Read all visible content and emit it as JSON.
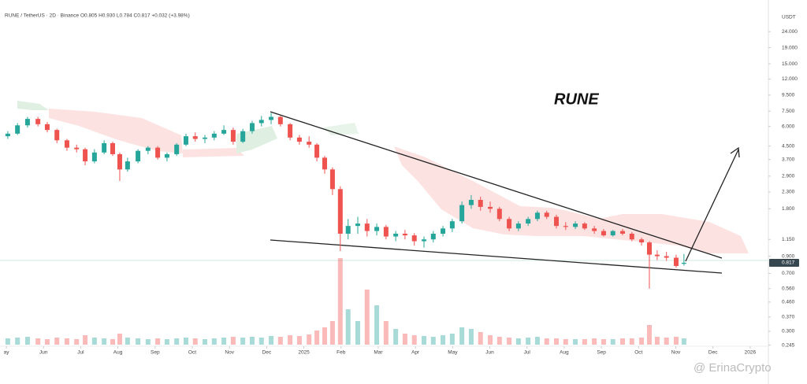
{
  "chart_data": {
    "type": "candlestick",
    "title": "RUNE / TetherUS · 2D · Binance  O0.805  H0.930  L0.784  C0.817  +0.032 (+3.98%)",
    "annotation": "RUNE",
    "watermark": "@ ErinaCrypto",
    "y_axis_label": "USDT",
    "log_scale": true,
    "grid": false,
    "up_color": "#26a69a",
    "down_color": "#ef5350",
    "tag_color": "#37474f",
    "x": [
      0.04,
      0.3,
      0.57,
      0.85,
      1.1,
      1.36,
      1.63,
      1.89,
      2.12,
      2.37,
      2.63,
      2.86,
      3.05,
      3.26,
      3.54,
      3.81,
      4.07,
      4.32,
      4.58,
      4.83,
      5.08,
      5.34,
      5.59,
      5.85,
      6.1,
      6.36,
      6.61,
      6.86,
      7.12,
      7.37,
      7.63,
      7.88,
      8.14,
      8.35,
      8.56,
      8.77,
      8.98,
      9.19,
      9.45,
      9.7,
      9.96,
      10.21,
      10.47,
      10.72,
      10.97,
      11.23,
      11.48,
      11.74,
      11.99,
      12.25,
      12.5,
      12.75,
      13.01,
      13.26,
      13.52,
      13.77,
      14.03,
      14.28,
      14.53,
      14.79,
      15.04,
      15.3,
      15.55,
      15.81,
      16.06,
      16.31,
      16.57,
      16.82,
      17.08,
      17.29,
      17.5,
      17.75,
      18.01,
      18.22
    ],
    "open": [
      5.2,
      5.4,
      6.1,
      6.7,
      6.2,
      5.7,
      4.9,
      4.4,
      4.3,
      3.6,
      4.1,
      4.7,
      4.0,
      3.2,
      3.6,
      4.2,
      4.4,
      3.8,
      4.0,
      4.6,
      5.2,
      5.0,
      5.1,
      5.4,
      5.7,
      4.8,
      5.6,
      6.3,
      6.6,
      6.9,
      6.2,
      5.1,
      4.8,
      4.6,
      3.8,
      3.2,
      2.4,
      1.25,
      1.4,
      1.45,
      1.3,
      1.38,
      1.2,
      1.25,
      1.22,
      1.12,
      1.15,
      1.25,
      1.35,
      1.5,
      1.9,
      2.05,
      1.85,
      1.8,
      1.55,
      1.35,
      1.45,
      1.55,
      1.7,
      1.6,
      1.4,
      1.38,
      1.45,
      1.35,
      1.3,
      1.22,
      1.3,
      1.25,
      1.15,
      1.1,
      0.92,
      0.9,
      0.88,
      0.805
    ],
    "high": [
      5.6,
      6.3,
      6.9,
      6.9,
      6.4,
      5.8,
      5.0,
      4.6,
      4.4,
      4.3,
      4.9,
      4.8,
      4.1,
      3.8,
      4.3,
      4.5,
      4.5,
      4.1,
      4.7,
      5.4,
      5.5,
      5.3,
      5.6,
      6.1,
      5.9,
      5.8,
      6.5,
      7.0,
      7.3,
      7.0,
      6.3,
      5.3,
      5.2,
      4.7,
      3.9,
      3.3,
      2.5,
      1.55,
      1.6,
      1.55,
      1.45,
      1.42,
      1.3,
      1.32,
      1.26,
      1.2,
      1.3,
      1.4,
      1.55,
      2.0,
      2.2,
      2.15,
      2.0,
      1.85,
      1.6,
      1.5,
      1.6,
      1.75,
      1.75,
      1.65,
      1.48,
      1.5,
      1.48,
      1.4,
      1.34,
      1.32,
      1.34,
      1.28,
      1.18,
      1.12,
      0.98,
      0.96,
      0.92,
      0.93
    ],
    "low": [
      5.0,
      5.3,
      5.9,
      6.0,
      5.5,
      4.7,
      4.2,
      4.1,
      3.4,
      3.5,
      4.0,
      3.9,
      2.7,
      3.1,
      3.5,
      4.0,
      3.7,
      3.6,
      3.9,
      4.5,
      4.8,
      4.7,
      4.9,
      5.3,
      4.6,
      4.7,
      5.4,
      6.0,
      6.2,
      6.0,
      4.9,
      4.6,
      4.4,
      3.6,
      3.0,
      2.2,
      0.97,
      1.15,
      1.25,
      1.2,
      1.22,
      1.15,
      1.12,
      1.15,
      1.05,
      1.02,
      1.1,
      1.2,
      1.28,
      1.45,
      1.8,
      1.75,
      1.7,
      1.5,
      1.3,
      1.3,
      1.4,
      1.5,
      1.55,
      1.35,
      1.32,
      1.34,
      1.32,
      1.25,
      1.2,
      1.2,
      1.22,
      1.12,
      1.05,
      0.56,
      0.85,
      0.84,
      0.76,
      0.784
    ],
    "close": [
      5.4,
      6.1,
      6.7,
      6.2,
      5.7,
      4.9,
      4.4,
      4.3,
      3.6,
      4.1,
      4.7,
      4.0,
      3.2,
      3.6,
      4.2,
      4.4,
      3.8,
      4.0,
      4.6,
      5.2,
      5.0,
      5.1,
      5.4,
      5.7,
      4.8,
      5.6,
      6.3,
      6.6,
      6.9,
      6.2,
      5.1,
      4.8,
      4.6,
      3.8,
      3.2,
      2.4,
      1.25,
      1.4,
      1.45,
      1.3,
      1.38,
      1.2,
      1.25,
      1.22,
      1.12,
      1.15,
      1.25,
      1.35,
      1.5,
      1.9,
      2.05,
      1.85,
      1.8,
      1.55,
      1.35,
      1.45,
      1.55,
      1.7,
      1.6,
      1.4,
      1.38,
      1.45,
      1.35,
      1.3,
      1.22,
      1.3,
      1.25,
      1.15,
      1.1,
      0.92,
      0.9,
      0.88,
      0.78,
      0.817
    ],
    "volume": [
      8,
      9,
      10,
      8,
      7,
      9,
      8,
      7,
      12,
      9,
      8,
      7,
      14,
      9,
      8,
      7,
      8,
      7,
      8,
      9,
      8,
      7,
      8,
      9,
      10,
      9,
      10,
      9,
      11,
      10,
      12,
      11,
      13,
      18,
      22,
      30,
      110,
      45,
      30,
      70,
      50,
      30,
      20,
      14,
      12,
      11,
      10,
      12,
      14,
      22,
      20,
      16,
      12,
      10,
      9,
      8,
      9,
      10,
      8,
      8,
      7,
      7,
      7,
      8,
      7,
      7,
      8,
      8,
      9,
      25,
      10,
      9,
      10,
      8
    ],
    "xlim": [
      -0.17,
      20.49
    ],
    "ylim": [
      0.21,
      31
    ],
    "xticks": [
      {
        "value": 0,
        "label": "ay"
      },
      {
        "value": 1,
        "label": "Jun"
      },
      {
        "value": 2,
        "label": "Jul"
      },
      {
        "value": 3,
        "label": "Aug"
      },
      {
        "value": 4,
        "label": "Sep"
      },
      {
        "value": 5,
        "label": "Oct"
      },
      {
        "value": 6,
        "label": "Nov"
      },
      {
        "value": 7,
        "label": "Dec"
      },
      {
        "value": 8,
        "label": "2025"
      },
      {
        "value": 9,
        "label": "Feb"
      },
      {
        "value": 10,
        "label": "Mar"
      },
      {
        "value": 11,
        "label": "Apr"
      },
      {
        "value": 12,
        "label": "May"
      },
      {
        "value": 13,
        "label": "Jun"
      },
      {
        "value": 14,
        "label": "Jul"
      },
      {
        "value": 15,
        "label": "Aug"
      },
      {
        "value": 16,
        "label": "Sep"
      },
      {
        "value": 17,
        "label": "Oct"
      },
      {
        "value": 18,
        "label": "Nov"
      },
      {
        "value": 19,
        "label": "Dec"
      },
      {
        "value": 20,
        "label": "2026"
      }
    ],
    "yticks": [
      {
        "value": 24,
        "label": "24.000"
      },
      {
        "value": 19,
        "label": "19.000"
      },
      {
        "value": 15,
        "label": "15.000"
      },
      {
        "value": 12,
        "label": "12.000"
      },
      {
        "value": 9.5,
        "label": "9.500"
      },
      {
        "value": 7.5,
        "label": "7.500"
      },
      {
        "value": 6,
        "label": "6.000"
      },
      {
        "value": 4.5,
        "label": "4.500"
      },
      {
        "value": 3.7,
        "label": "3.700"
      },
      {
        "value": 2.9,
        "label": "2.900"
      },
      {
        "value": 2.3,
        "label": "2.300"
      },
      {
        "value": 1.8,
        "label": "1.800"
      },
      {
        "value": 1.15,
        "label": "1.150"
      },
      {
        "value": 0.9,
        "label": "0.900"
      },
      {
        "value": 0.7,
        "label": "0.700"
      },
      {
        "value": 0.56,
        "label": "0.560"
      },
      {
        "value": 0.46,
        "label": "0.460"
      },
      {
        "value": 0.37,
        "label": "0.370"
      },
      {
        "value": 0.3,
        "label": "0.300"
      },
      {
        "value": 0.245,
        "label": "0.245"
      }
    ]
  }
}
